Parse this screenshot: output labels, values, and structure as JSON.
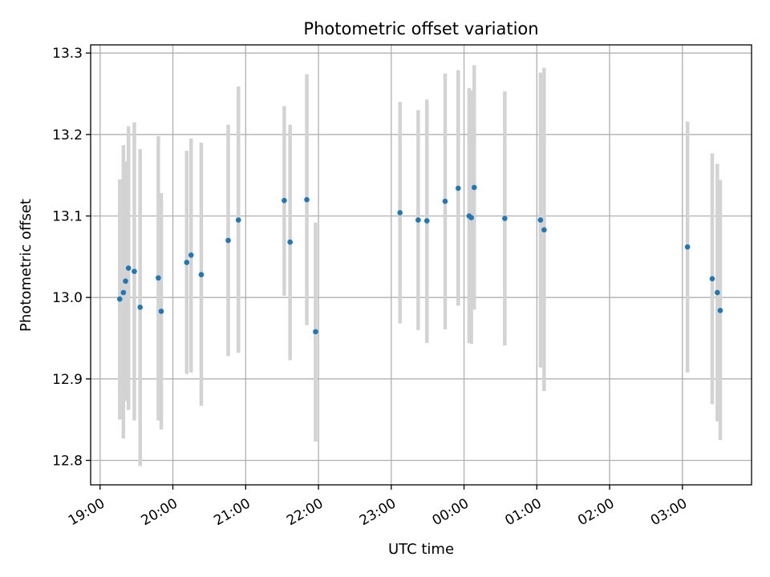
{
  "chart_data": {
    "type": "scatter",
    "title": "Photometric offset variation",
    "xlabel": "UTC time",
    "ylabel": "Photometric offset",
    "x_unit": "hours UTC (values past midnight continue beyond 24)",
    "xlim": [
      18.87,
      27.95
    ],
    "ylim": [
      12.77,
      13.31
    ],
    "x_ticks": [
      {
        "value": 19,
        "label": "19:00"
      },
      {
        "value": 20,
        "label": "20:00"
      },
      {
        "value": 21,
        "label": "21:00"
      },
      {
        "value": 22,
        "label": "22:00"
      },
      {
        "value": 23,
        "label": "23:00"
      },
      {
        "value": 24,
        "label": "00:00"
      },
      {
        "value": 25,
        "label": "01:00"
      },
      {
        "value": 26,
        "label": "02:00"
      },
      {
        "value": 27,
        "label": "03:00"
      }
    ],
    "y_ticks": [
      {
        "value": 12.8,
        "label": "12.8"
      },
      {
        "value": 12.9,
        "label": "12.9"
      },
      {
        "value": 13.0,
        "label": "13.0"
      },
      {
        "value": 13.1,
        "label": "13.1"
      },
      {
        "value": 13.2,
        "label": "13.2"
      },
      {
        "value": 13.3,
        "label": "13.3"
      }
    ],
    "grid": true,
    "point_color": "#1f77b4",
    "errorbar_color": "#d3d3d3",
    "points": [
      {
        "x": 19.27,
        "y": 12.998,
        "lo": 12.85,
        "hi": 13.145
      },
      {
        "x": 19.32,
        "y": 13.006,
        "lo": 12.827,
        "hi": 13.187
      },
      {
        "x": 19.35,
        "y": 13.02,
        "lo": 12.873,
        "hi": 13.167
      },
      {
        "x": 19.39,
        "y": 13.036,
        "lo": 12.862,
        "hi": 13.21
      },
      {
        "x": 19.47,
        "y": 13.032,
        "lo": 12.849,
        "hi": 13.215
      },
      {
        "x": 19.55,
        "y": 12.988,
        "lo": 12.793,
        "hi": 13.182
      },
      {
        "x": 19.8,
        "y": 13.024,
        "lo": 12.849,
        "hi": 13.198
      },
      {
        "x": 19.84,
        "y": 12.983,
        "lo": 12.838,
        "hi": 13.128
      },
      {
        "x": 20.19,
        "y": 13.043,
        "lo": 12.906,
        "hi": 13.18
      },
      {
        "x": 20.25,
        "y": 13.052,
        "lo": 12.908,
        "hi": 13.195
      },
      {
        "x": 20.39,
        "y": 13.028,
        "lo": 12.867,
        "hi": 13.19
      },
      {
        "x": 20.76,
        "y": 13.07,
        "lo": 12.928,
        "hi": 13.212
      },
      {
        "x": 20.9,
        "y": 13.095,
        "lo": 12.932,
        "hi": 13.259
      },
      {
        "x": 21.53,
        "y": 13.119,
        "lo": 13.002,
        "hi": 13.235
      },
      {
        "x": 21.61,
        "y": 13.068,
        "lo": 12.923,
        "hi": 13.212
      },
      {
        "x": 21.84,
        "y": 13.12,
        "lo": 12.966,
        "hi": 13.274
      },
      {
        "x": 21.96,
        "y": 12.958,
        "lo": 12.823,
        "hi": 13.092
      },
      {
        "x": 23.12,
        "y": 13.104,
        "lo": 12.968,
        "hi": 13.24
      },
      {
        "x": 23.37,
        "y": 13.095,
        "lo": 12.96,
        "hi": 13.23
      },
      {
        "x": 23.49,
        "y": 13.094,
        "lo": 12.944,
        "hi": 13.243
      },
      {
        "x": 23.74,
        "y": 13.118,
        "lo": 12.961,
        "hi": 13.275
      },
      {
        "x": 23.92,
        "y": 13.134,
        "lo": 12.99,
        "hi": 13.279
      },
      {
        "x": 24.07,
        "y": 13.1,
        "lo": 12.944,
        "hi": 13.257
      },
      {
        "x": 24.1,
        "y": 13.098,
        "lo": 12.943,
        "hi": 13.254
      },
      {
        "x": 24.14,
        "y": 13.135,
        "lo": 12.985,
        "hi": 13.285
      },
      {
        "x": 24.56,
        "y": 13.097,
        "lo": 12.941,
        "hi": 13.253
      },
      {
        "x": 25.05,
        "y": 13.095,
        "lo": 12.914,
        "hi": 13.276
      },
      {
        "x": 25.1,
        "y": 13.083,
        "lo": 12.885,
        "hi": 13.282
      },
      {
        "x": 27.07,
        "y": 13.062,
        "lo": 12.908,
        "hi": 13.216
      },
      {
        "x": 27.41,
        "y": 13.023,
        "lo": 12.869,
        "hi": 13.177
      },
      {
        "x": 27.48,
        "y": 13.006,
        "lo": 12.848,
        "hi": 13.164
      },
      {
        "x": 27.52,
        "y": 12.984,
        "lo": 12.825,
        "hi": 13.144
      }
    ]
  }
}
